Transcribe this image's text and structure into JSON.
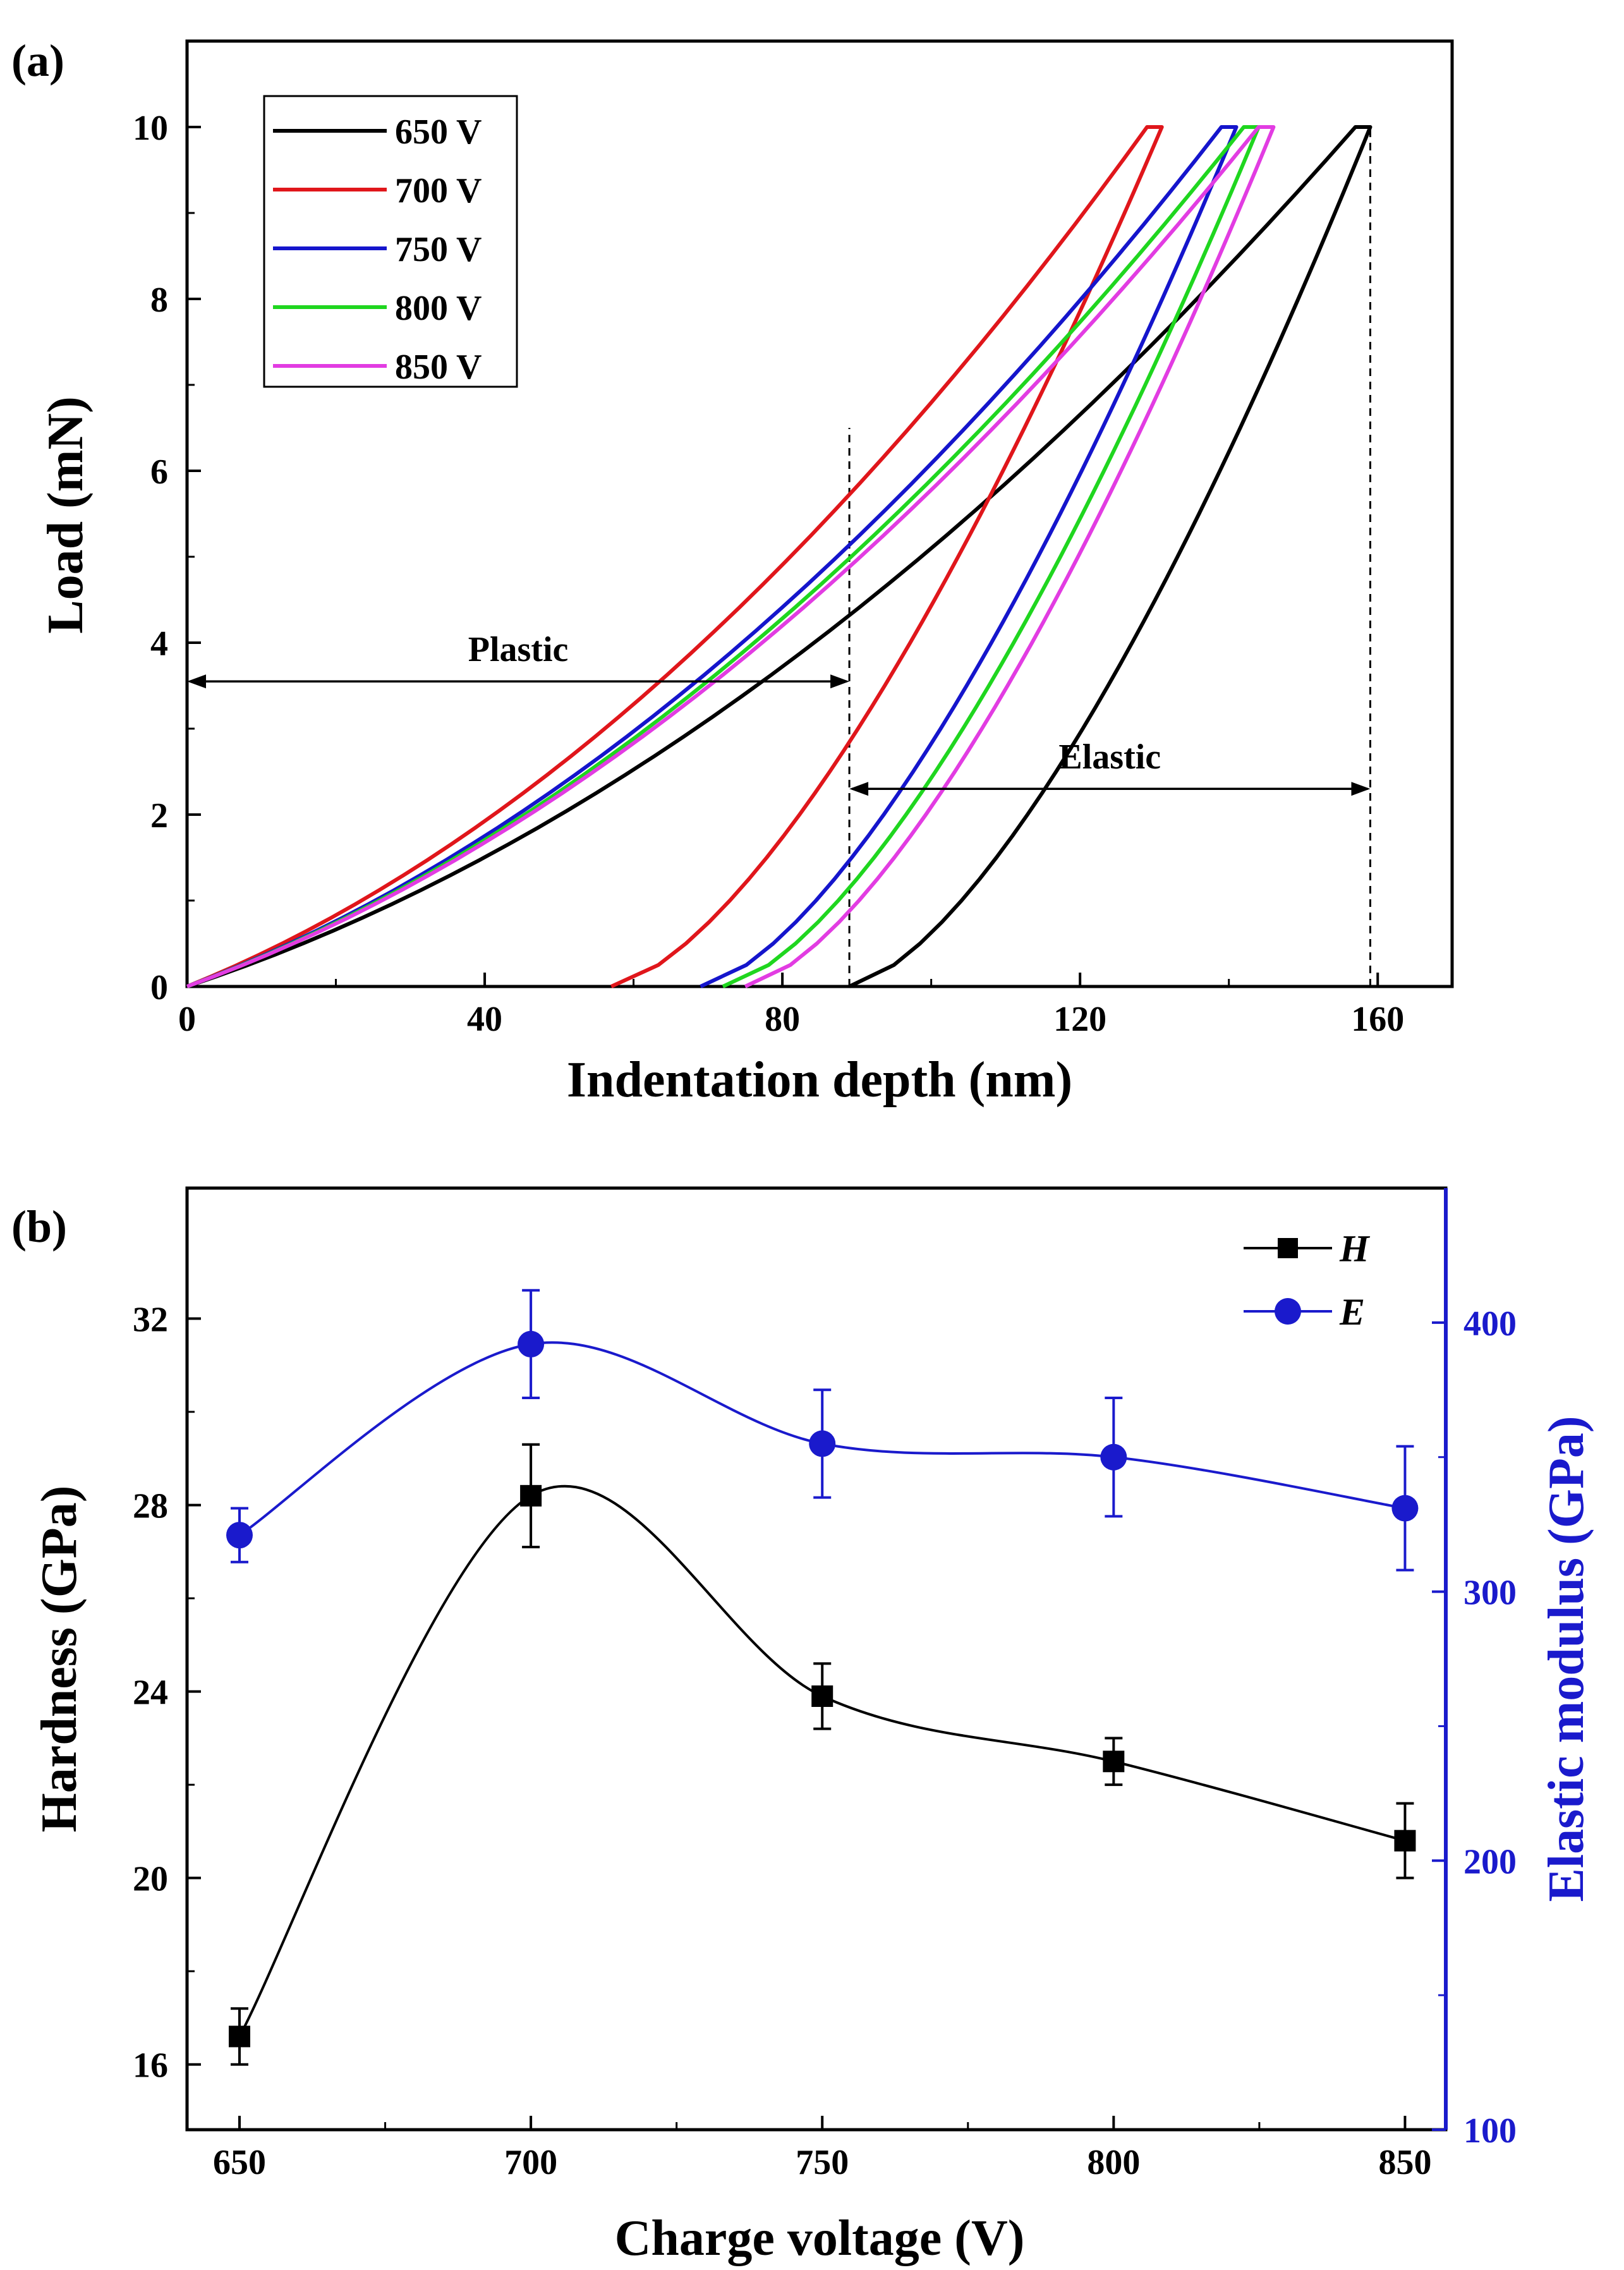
{
  "chart_data": [
    {
      "panel_label": "(a)",
      "type": "line",
      "xlabel": "Indentation depth (nm)",
      "ylabel": "Load (mN)",
      "xlim": [
        0,
        170
      ],
      "ylim": [
        0,
        11
      ],
      "xticks": [
        0,
        40,
        80,
        120,
        160
      ],
      "yticks": [
        0,
        2,
        4,
        6,
        8,
        10
      ],
      "x_tick_labels": [
        "0",
        "40",
        "80",
        "120",
        "160"
      ],
      "y_tick_labels": [
        "0",
        "2",
        "4",
        "6",
        "8",
        "10"
      ],
      "legend_position": "top-left",
      "series": [
        {
          "name": "650 V",
          "color": "#000000",
          "loading_end_x": 157,
          "plateau_end_x": 159,
          "unloading_end_x": 89
        },
        {
          "name": "700 V",
          "color": "#e0161b",
          "loading_end_x": 129,
          "plateau_end_x": 131,
          "unloading_end_x": 57
        },
        {
          "name": "750 V",
          "color": "#1515cc",
          "loading_end_x": 139,
          "plateau_end_x": 141,
          "unloading_end_x": 69
        },
        {
          "name": "800 V",
          "color": "#1fd61f",
          "loading_end_x": 142,
          "plateau_end_x": 144,
          "unloading_end_x": 72
        },
        {
          "name": "850 V",
          "color": "#e23ce2",
          "loading_end_x": 144,
          "plateau_end_x": 146,
          "unloading_end_x": 75
        }
      ],
      "max_load": 10,
      "annotations": [
        {
          "text": "Plastic",
          "x_from": 0,
          "x_to": 89,
          "y": 3.55
        },
        {
          "text": "Elastic",
          "x_from": 89,
          "x_to": 159,
          "y": 2.3
        }
      ],
      "reference_lines": [
        {
          "x": 89,
          "y_from": 0,
          "y_to": 6.5
        },
        {
          "x": 159,
          "y_from": 0,
          "y_to": 10
        }
      ]
    },
    {
      "panel_label": "(b)",
      "type": "line",
      "xlabel": "Charge voltage (V)",
      "ylabel": "Hardness (GPa)",
      "y2label": "Elastic modulus (GPa)",
      "categories": [
        650,
        700,
        750,
        800,
        850
      ],
      "xlim": [
        641,
        857
      ],
      "ylim": [
        14.6,
        34.8
      ],
      "y2lim": [
        100,
        450
      ],
      "xticks": [
        650,
        700,
        750,
        800,
        850
      ],
      "x_tick_labels": [
        "650",
        "700",
        "750",
        "800",
        "850"
      ],
      "yticks": [
        16,
        20,
        24,
        28,
        32
      ],
      "y_tick_labels": [
        "16",
        "20",
        "24",
        "28",
        "32"
      ],
      "y2ticks": [
        100,
        200,
        300,
        400
      ],
      "y2_tick_labels": [
        "100",
        "200",
        "300",
        "400"
      ],
      "legend_position": "top-right",
      "series": [
        {
          "name": "H",
          "axis": "left",
          "color": "#000000",
          "marker": "square",
          "values": [
            16.6,
            28.2,
            23.9,
            22.5,
            20.8
          ],
          "errors": [
            0.6,
            1.1,
            0.7,
            0.5,
            0.8
          ]
        },
        {
          "name": "E",
          "axis": "right",
          "color": "#1a1acc",
          "marker": "circle",
          "values": [
            321,
            392,
            355,
            350,
            331
          ],
          "errors": [
            10,
            20,
            20,
            22,
            23
          ]
        }
      ]
    }
  ]
}
